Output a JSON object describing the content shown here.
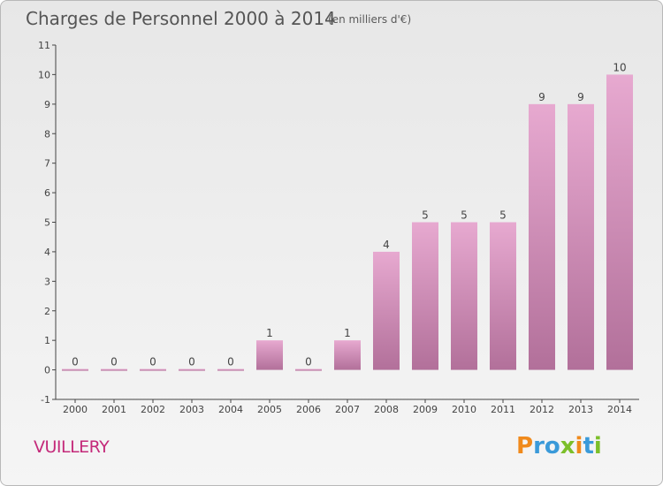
{
  "header": {
    "title": "Charges de Personnel 2000 à 2014",
    "subtitle": "(en milliers d'€)"
  },
  "footer": {
    "commune": "VUILLERY",
    "logo_text": "Proxiti"
  },
  "colors": {
    "bar_top": "#e7a9d0",
    "bar_bottom": "#b2709a",
    "commune_text": "#c42a7a",
    "logo_p": "#f08a1c",
    "logo_r": "#3a9ad9",
    "logo_o": "#3a9ad9",
    "logo_x": "#7cbf2a",
    "logo_i": "#f08a1c",
    "logo_t": "#3a9ad9",
    "logo_i2": "#7cbf2a"
  },
  "chart_data": {
    "type": "bar",
    "title": "Charges de Personnel 2000 à 2014",
    "subtitle": "(en milliers d'€)",
    "categories": [
      "2000",
      "2001",
      "2002",
      "2003",
      "2004",
      "2005",
      "2006",
      "2007",
      "2008",
      "2009",
      "2010",
      "2011",
      "2012",
      "2013",
      "2014"
    ],
    "values": [
      0,
      0,
      0,
      0,
      0,
      1,
      0,
      1,
      4,
      5,
      5,
      5,
      9,
      9,
      10
    ],
    "data_labels": [
      "0",
      "0",
      "0",
      "0",
      "0",
      "1",
      "0",
      "1",
      "4",
      "5",
      "5",
      "5",
      "9",
      "9",
      "10"
    ],
    "ylim": [
      -1,
      11
    ],
    "yticks": [
      -1,
      0,
      1,
      2,
      3,
      4,
      5,
      6,
      7,
      8,
      9,
      10,
      11
    ],
    "ytick_labels": [
      "-1",
      "0",
      "1",
      "2",
      "3",
      "4",
      "5",
      "6",
      "7",
      "8",
      "9",
      "10",
      "11"
    ],
    "xlabel": "",
    "ylabel": "",
    "grid": false
  }
}
